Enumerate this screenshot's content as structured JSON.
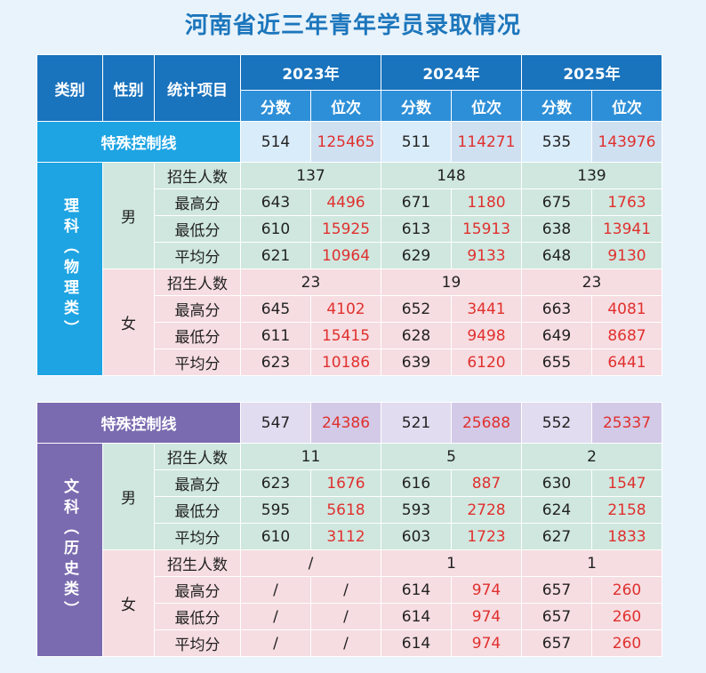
{
  "title": "河南省近三年青年学员录取情况",
  "headers": {
    "category": "类别",
    "gender": "性别",
    "item": "统计项目",
    "years": [
      "2023年",
      "2024年",
      "2025年"
    ],
    "score": "分数",
    "rank": "位次"
  },
  "science": {
    "category": "理科（物理类）",
    "control": {
      "label": "特殊控制线",
      "values": [
        "514",
        "125465",
        "511",
        "114271",
        "535",
        "143976"
      ]
    },
    "male": {
      "label": "男",
      "enroll": {
        "label": "招生人数",
        "values": [
          "137",
          "148",
          "139"
        ]
      },
      "rows": [
        {
          "label": "最高分",
          "values": [
            "643",
            "4496",
            "671",
            "1180",
            "675",
            "1763"
          ]
        },
        {
          "label": "最低分",
          "values": [
            "610",
            "15925",
            "613",
            "15913",
            "638",
            "13941"
          ]
        },
        {
          "label": "平均分",
          "values": [
            "621",
            "10964",
            "629",
            "9133",
            "648",
            "9130"
          ]
        }
      ]
    },
    "female": {
      "label": "女",
      "enroll": {
        "label": "招生人数",
        "values": [
          "23",
          "19",
          "23"
        ]
      },
      "rows": [
        {
          "label": "最高分",
          "values": [
            "645",
            "4102",
            "652",
            "3441",
            "663",
            "4081"
          ]
        },
        {
          "label": "最低分",
          "values": [
            "611",
            "15415",
            "628",
            "9498",
            "649",
            "8687"
          ]
        },
        {
          "label": "平均分",
          "values": [
            "623",
            "10186",
            "639",
            "6120",
            "655",
            "6441"
          ]
        }
      ]
    }
  },
  "arts": {
    "category": "文科（历史类）",
    "control": {
      "label": "特殊控制线",
      "values": [
        "547",
        "24386",
        "521",
        "25688",
        "552",
        "25337"
      ]
    },
    "male": {
      "label": "男",
      "enroll": {
        "label": "招生人数",
        "values": [
          "11",
          "5",
          "2"
        ]
      },
      "rows": [
        {
          "label": "最高分",
          "values": [
            "623",
            "1676",
            "616",
            "887",
            "630",
            "1547"
          ]
        },
        {
          "label": "最低分",
          "values": [
            "595",
            "5618",
            "593",
            "2728",
            "624",
            "2158"
          ]
        },
        {
          "label": "平均分",
          "values": [
            "610",
            "3112",
            "603",
            "1723",
            "627",
            "1833"
          ]
        }
      ]
    },
    "female": {
      "label": "女",
      "enroll": {
        "label": "招生人数",
        "values": [
          "/",
          "1",
          "1"
        ]
      },
      "rows": [
        {
          "label": "最高分",
          "values": [
            "/",
            "/",
            "614",
            "974",
            "657",
            "260"
          ]
        },
        {
          "label": "最低分",
          "values": [
            "/",
            "/",
            "614",
            "974",
            "657",
            "260"
          ]
        },
        {
          "label": "平均分",
          "values": [
            "/",
            "/",
            "614",
            "974",
            "657",
            "260"
          ]
        }
      ]
    }
  }
}
